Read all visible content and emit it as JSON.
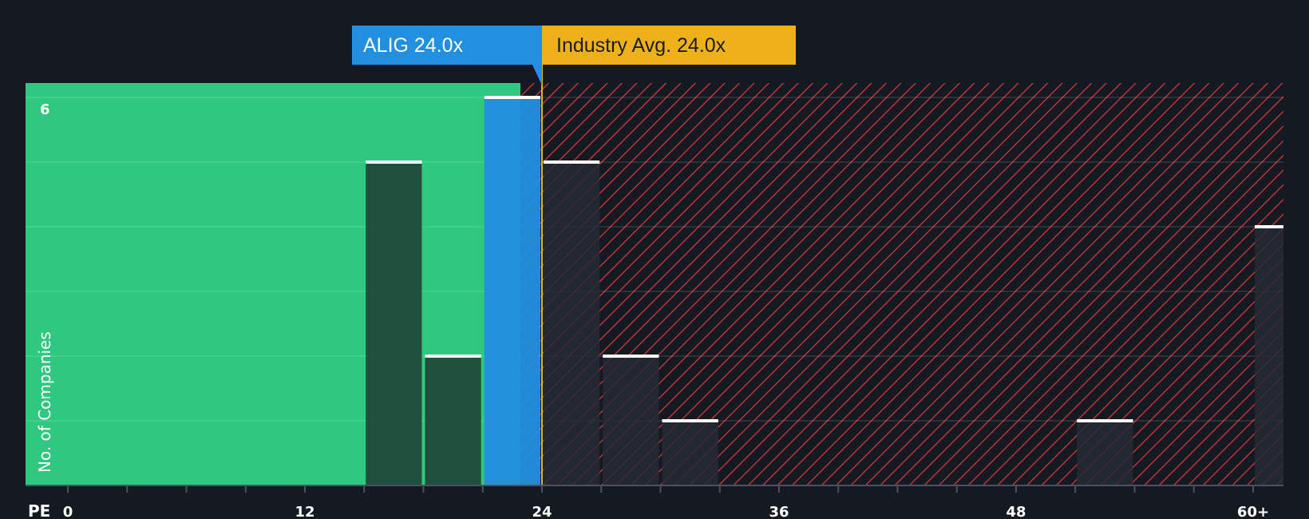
{
  "chart_data": {
    "type": "bar",
    "title": "",
    "xlabel": "PE",
    "ylabel": "No. of Companies",
    "xlim": [
      0,
      60
    ],
    "ylim": [
      0,
      6
    ],
    "bin_width": 3,
    "x_ticks": [
      {
        "value": 0,
        "label": "0"
      },
      {
        "value": 12,
        "label": "12"
      },
      {
        "value": 24,
        "label": "24"
      },
      {
        "value": 36,
        "label": "36"
      },
      {
        "value": 48,
        "label": "48"
      },
      {
        "value": 60,
        "label": "60+"
      }
    ],
    "y_ticks": [
      {
        "value": 6,
        "label": "6"
      }
    ],
    "bins": [
      {
        "start": 15,
        "value": 5,
        "kind": "below"
      },
      {
        "start": 18,
        "value": 2,
        "kind": "below"
      },
      {
        "start": 21,
        "value": 6,
        "kind": "company"
      },
      {
        "start": 24,
        "value": 5,
        "kind": "above"
      },
      {
        "start": 27,
        "value": 2,
        "kind": "above"
      },
      {
        "start": 30,
        "value": 1,
        "kind": "above"
      },
      {
        "start": 51,
        "value": 1,
        "kind": "above"
      },
      {
        "start": 60,
        "value": 4,
        "kind": "above"
      }
    ],
    "company": {
      "name": "ALIG",
      "value": 24.0,
      "label": "ALIG 24.0x"
    },
    "industry_avg": {
      "value": 24.0,
      "label": "Industry Avg. 24.0x"
    },
    "colors": {
      "background": "#151a22",
      "fair_zone": "#2ec87f",
      "expensive_stripe": "#e0393e",
      "company": "#2290e0",
      "industry": "#efb11a",
      "bar_below": "#1f4a3a",
      "bar_above": "#262a35",
      "bar_cap": "#ffffff",
      "text": "#ffffff"
    }
  }
}
